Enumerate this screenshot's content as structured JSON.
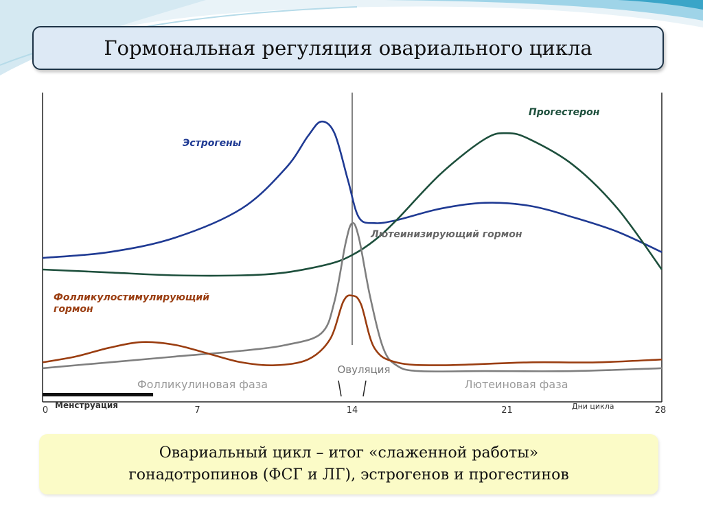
{
  "title": "Гормональная регуляция овариального цикла",
  "caption": {
    "line1": "Овариальный цикл – итог «слаженной работы»",
    "line2": "гонадотропинов (ФСГ и ЛГ), эстрогенов и прогестинов"
  },
  "colors": {
    "estrogen": "#1f3a93",
    "progesterone": "#1d4f3c",
    "lh": "#7f7f7f",
    "fsh": "#9a3d10"
  },
  "chart_data": {
    "type": "line",
    "xlim": [
      0,
      28
    ],
    "x_ticks": [
      "0",
      "7",
      "14",
      "21",
      "28"
    ],
    "x_tick_values": [
      0,
      7,
      14,
      21,
      28
    ],
    "x_axis_label": "Дни цикла",
    "menstruation_label": "Менструация",
    "menstruation_days": [
      0,
      5
    ],
    "ovulation_label": "Овуляция",
    "ovulation_day": 14,
    "phase_labels": [
      "Фолликулиновая фаза",
      "Лютеиновая фаза"
    ],
    "series": [
      {
        "name": "Эстрогены",
        "key": "estrogen",
        "x": [
          0,
          3,
          6,
          9,
          11,
          12,
          12.6,
          13.2,
          13.8,
          14.3,
          15,
          16,
          18,
          20,
          22,
          24,
          26,
          28
        ],
        "y": [
          0.43,
          0.45,
          0.5,
          0.6,
          0.74,
          0.85,
          0.9,
          0.86,
          0.7,
          0.57,
          0.55,
          0.56,
          0.6,
          0.62,
          0.61,
          0.57,
          0.52,
          0.45
        ]
      },
      {
        "name": "Прогестерон",
        "key": "progesterone",
        "x": [
          0,
          3,
          6,
          9,
          11,
          13,
          14,
          15,
          16,
          18,
          20,
          21,
          22,
          24,
          26,
          28
        ],
        "y": [
          0.39,
          0.38,
          0.37,
          0.37,
          0.38,
          0.41,
          0.44,
          0.49,
          0.56,
          0.72,
          0.84,
          0.86,
          0.84,
          0.75,
          0.6,
          0.39
        ]
      },
      {
        "name": "Лютеинизирующий гормон",
        "key": "lh",
        "x": [
          0,
          3,
          6,
          9,
          11,
          12.6,
          13.2,
          13.7,
          14,
          14.3,
          14.8,
          15.4,
          16,
          17,
          20,
          24,
          28
        ],
        "y": [
          0.05,
          0.07,
          0.09,
          0.11,
          0.13,
          0.17,
          0.28,
          0.48,
          0.55,
          0.5,
          0.3,
          0.12,
          0.06,
          0.04,
          0.04,
          0.04,
          0.05
        ]
      },
      {
        "name": "Фолликулостимулирующий гормон",
        "key": "fsh",
        "x": [
          0,
          1.5,
          3,
          4.5,
          6,
          7.5,
          9,
          10.5,
          12,
          13,
          13.6,
          14,
          14.4,
          15,
          16,
          18,
          22,
          25,
          28
        ],
        "y": [
          0.07,
          0.09,
          0.12,
          0.14,
          0.13,
          0.1,
          0.07,
          0.06,
          0.08,
          0.15,
          0.28,
          0.3,
          0.27,
          0.12,
          0.07,
          0.06,
          0.07,
          0.07,
          0.08
        ]
      }
    ]
  }
}
